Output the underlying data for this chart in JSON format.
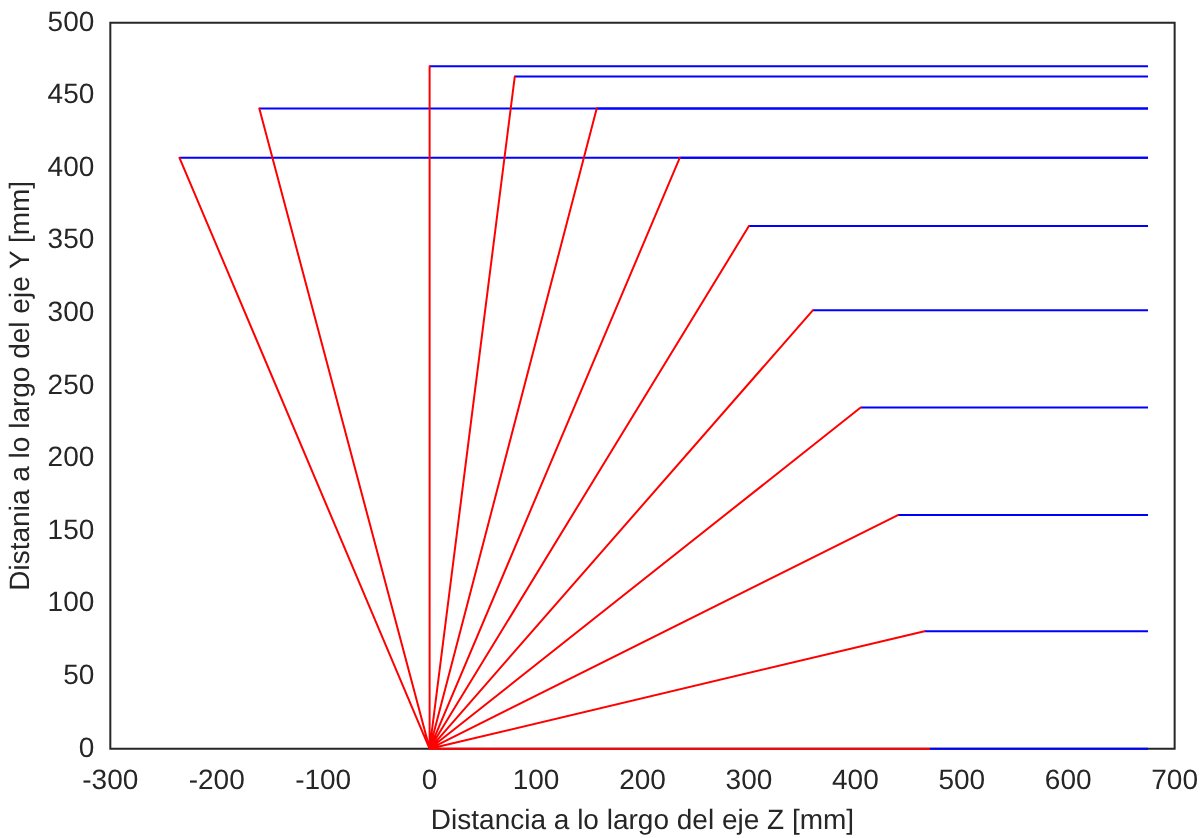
{
  "chart_data": {
    "type": "line",
    "xlabel": "Distancia a lo largo del eje Z [mm]",
    "ylabel": "Distania a lo largo del eje Y [mm]",
    "xlim": [
      -300,
      700
    ],
    "ylim": [
      0,
      500
    ],
    "xticks": [
      -300,
      -200,
      -100,
      0,
      100,
      200,
      300,
      400,
      500,
      600,
      700
    ],
    "yticks": [
      0,
      50,
      100,
      150,
      200,
      250,
      300,
      350,
      400,
      450,
      500
    ],
    "grid": false,
    "legend": false,
    "marker": "none",
    "line_style": "solid",
    "series": [
      {
        "color": "#ff0000",
        "x": [
          0,
          -235,
          0,
          -160,
          0,
          0,
          0,
          80,
          0,
          157,
          0,
          235,
          0,
          300,
          0,
          360,
          0,
          405,
          0,
          440,
          0,
          465,
          0,
          470
        ],
        "values": [
          0,
          407,
          0,
          441,
          0,
          470,
          0,
          463,
          0,
          441,
          0,
          407,
          0,
          360,
          0,
          302,
          0,
          235,
          0,
          161,
          0,
          81,
          0,
          0
        ]
      },
      {
        "color": "#0000ff",
        "x": [
          -235,
          675
        ],
        "values": [
          407,
          407
        ]
      },
      {
        "color": "#0000ff",
        "x": [
          -160,
          675
        ],
        "values": [
          441,
          441
        ]
      },
      {
        "color": "#0000ff",
        "x": [
          0,
          675
        ],
        "values": [
          470,
          470
        ]
      },
      {
        "color": "#0000ff",
        "x": [
          80,
          675
        ],
        "values": [
          463,
          463
        ]
      },
      {
        "color": "#0000ff",
        "x": [
          157,
          675
        ],
        "values": [
          441,
          441
        ]
      },
      {
        "color": "#0000ff",
        "x": [
          235,
          675
        ],
        "values": [
          407,
          407
        ]
      },
      {
        "color": "#0000ff",
        "x": [
          300,
          675
        ],
        "values": [
          360,
          360
        ]
      },
      {
        "color": "#0000ff",
        "x": [
          360,
          675
        ],
        "values": [
          302,
          302
        ]
      },
      {
        "color": "#0000ff",
        "x": [
          405,
          675
        ],
        "values": [
          235,
          235
        ]
      },
      {
        "color": "#0000ff",
        "x": [
          440,
          675
        ],
        "values": [
          161,
          161
        ]
      },
      {
        "color": "#0000ff",
        "x": [
          465,
          675
        ],
        "values": [
          81,
          81
        ]
      },
      {
        "color": "#0000ff",
        "x": [
          470,
          675
        ],
        "values": [
          0,
          0
        ]
      }
    ]
  }
}
